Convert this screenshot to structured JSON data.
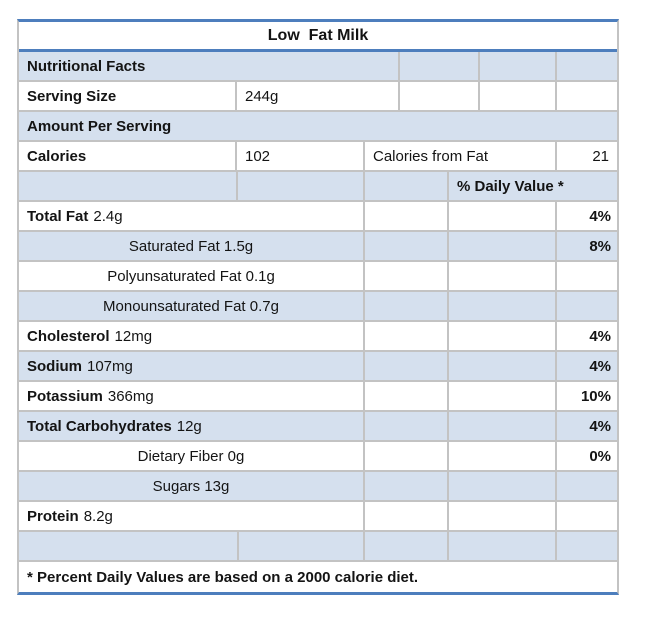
{
  "colors": {
    "accent_blue_border": "#4d7ebd",
    "band_blue_fill": "#d5e0ee",
    "grid_gray": "#c3c3c3",
    "text": "#141414",
    "page_background": "#ffffff"
  },
  "table": {
    "title": "Low  Fat Milk",
    "nutritional_facts_label": "Nutritional Facts",
    "serving_size": {
      "label": "Serving Size",
      "value": "244g"
    },
    "amount_per_serving_label": "Amount Per Serving",
    "calories": {
      "label": "Calories",
      "value": "102",
      "from_fat_label": "Calories from Fat",
      "from_fat_value": "21"
    },
    "daily_value_header": "% Daily Value *",
    "nutrients": [
      {
        "name": "Total Fat",
        "amount": "2.4g",
        "daily_value": "4%"
      },
      {
        "name": "Saturated Fat 1.5g",
        "amount": "",
        "daily_value": "8%"
      },
      {
        "name": "Polyunsaturated Fat 0.1g",
        "amount": "",
        "daily_value": ""
      },
      {
        "name": "Monounsaturated Fat 0.7g",
        "amount": "",
        "daily_value": ""
      },
      {
        "name": "Cholesterol",
        "amount": "12mg",
        "daily_value": "4%"
      },
      {
        "name": "Sodium",
        "amount": "107mg",
        "daily_value": "4%"
      },
      {
        "name": "Potassium",
        "amount": "366mg",
        "daily_value": "10%"
      },
      {
        "name": "Total Carbohydrates",
        "amount": "12g",
        "daily_value": "4%"
      },
      {
        "name": "Dietary Fiber 0g",
        "amount": "",
        "daily_value": "0%"
      },
      {
        "name": "Sugars 13g",
        "amount": "",
        "daily_value": ""
      },
      {
        "name": "Protein",
        "amount": "8.2g",
        "daily_value": ""
      }
    ],
    "footnote": "* Percent Daily Values are based on a 2000 calorie diet."
  }
}
